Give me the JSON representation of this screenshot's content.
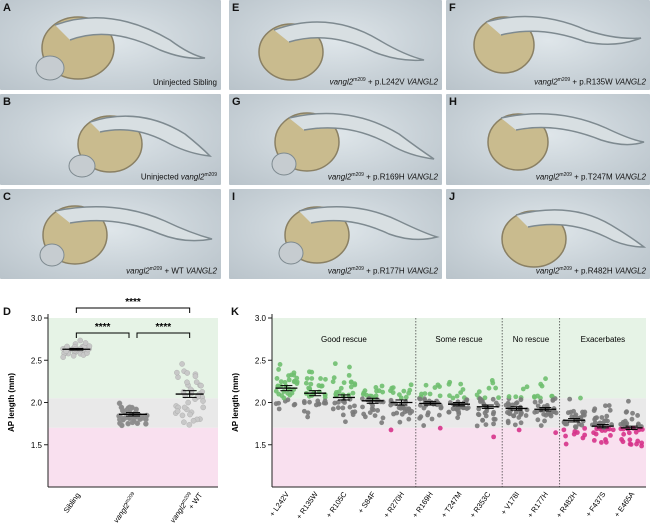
{
  "panels": [
    {
      "id": "A",
      "caption": "Uninjected Sibling"
    },
    {
      "id": "B",
      "caption_prefix": "Uninjected ",
      "caption_gene": "vangl2",
      "caption_sup": "m209",
      "caption_suffix": ""
    },
    {
      "id": "C",
      "caption_gene": "vangl2",
      "caption_sup": "m209",
      "caption_mid": " + WT ",
      "caption_human": "VANGL2"
    },
    {
      "id": "E",
      "caption_gene": "vangl2",
      "caption_sup": "m209",
      "caption_mid": " + p.L242V ",
      "caption_human": "VANGL2"
    },
    {
      "id": "F",
      "caption_gene": "vangl2",
      "caption_sup": "m209",
      "caption_mid": " + p.R135W ",
      "caption_human": "VANGL2"
    },
    {
      "id": "G",
      "caption_gene": "vangl2",
      "caption_sup": "m209",
      "caption_mid": " + p.R169H ",
      "caption_human": "VANGL2"
    },
    {
      "id": "H",
      "caption_gene": "vangl2",
      "caption_sup": "m209",
      "caption_mid": " + p.T247M ",
      "caption_human": "VANGL2"
    },
    {
      "id": "I",
      "caption_gene": "vangl2",
      "caption_sup": "m209",
      "caption_mid": " + p.R177H ",
      "caption_human": "VANGL2"
    },
    {
      "id": "J",
      "caption_gene": "vangl2",
      "caption_sup": "m209",
      "caption_mid": " + p.R482H ",
      "caption_human": "VANGL2"
    }
  ],
  "colors": {
    "green_zone": "#e6f3e6",
    "grey_zone": "#e9e9e9",
    "pink_zone": "#f9e0ef",
    "green": "#6fbf6f",
    "grey": "#7a7a7a",
    "magenta": "#d6338a",
    "light_grey": "#c8c8c8"
  },
  "chart_data": [
    {
      "id": "D",
      "type": "scatter",
      "ylabel": "AP length (mm)",
      "ylim": [
        1.0,
        3.0
      ],
      "yticks": [
        "1.5",
        "2.0",
        "2.5",
        "3.0"
      ],
      "categories": [
        "Sibling",
        "vangl2m209",
        "vangl2m209 + WT"
      ],
      "tick_labels": [
        {
          "text": "Sibling"
        },
        {
          "text": "vangl2",
          "sup": "m209"
        },
        {
          "text": "vangl2",
          "sup": "m209",
          "extra": "+ WT"
        }
      ],
      "means": [
        2.63,
        1.86,
        2.1
      ],
      "sem": [
        0.01,
        0.02,
        0.04
      ],
      "significance": [
        "****",
        "****",
        "****"
      ],
      "zones": {
        "green": [
          2.05,
          3.0
        ],
        "grey": [
          1.7,
          2.05
        ],
        "pink": [
          1.0,
          1.7
        ]
      }
    },
    {
      "id": "K",
      "type": "scatter",
      "ylabel": "AP length (mm)",
      "ylim": [
        1.0,
        3.0
      ],
      "yticks": [
        "1.5",
        "2.0",
        "2.5",
        "3.0"
      ],
      "groups": [
        "Good rescue",
        "Some rescue",
        "No rescue",
        "Exacerbates"
      ],
      "categories": [
        "+ L242V",
        "+ R135W",
        "+ R105C",
        "+ S84F",
        "+ R270H",
        "+ R169H",
        "+ T247M",
        "+ R353C",
        "+ V178I",
        "+ R177H",
        "+ R482H",
        "+ F437S",
        "+ E465A"
      ],
      "means": [
        2.17,
        2.11,
        2.06,
        2.02,
        2.0,
        1.99,
        1.98,
        1.95,
        1.93,
        1.92,
        1.79,
        1.72,
        1.7
      ],
      "sem": [
        0.03,
        0.03,
        0.03,
        0.03,
        0.03,
        0.02,
        0.02,
        0.02,
        0.02,
        0.02,
        0.02,
        0.02,
        0.02
      ],
      "zones": {
        "green": [
          2.05,
          3.0
        ],
        "grey": [
          1.7,
          2.05
        ],
        "pink": [
          1.0,
          1.7
        ]
      }
    }
  ]
}
